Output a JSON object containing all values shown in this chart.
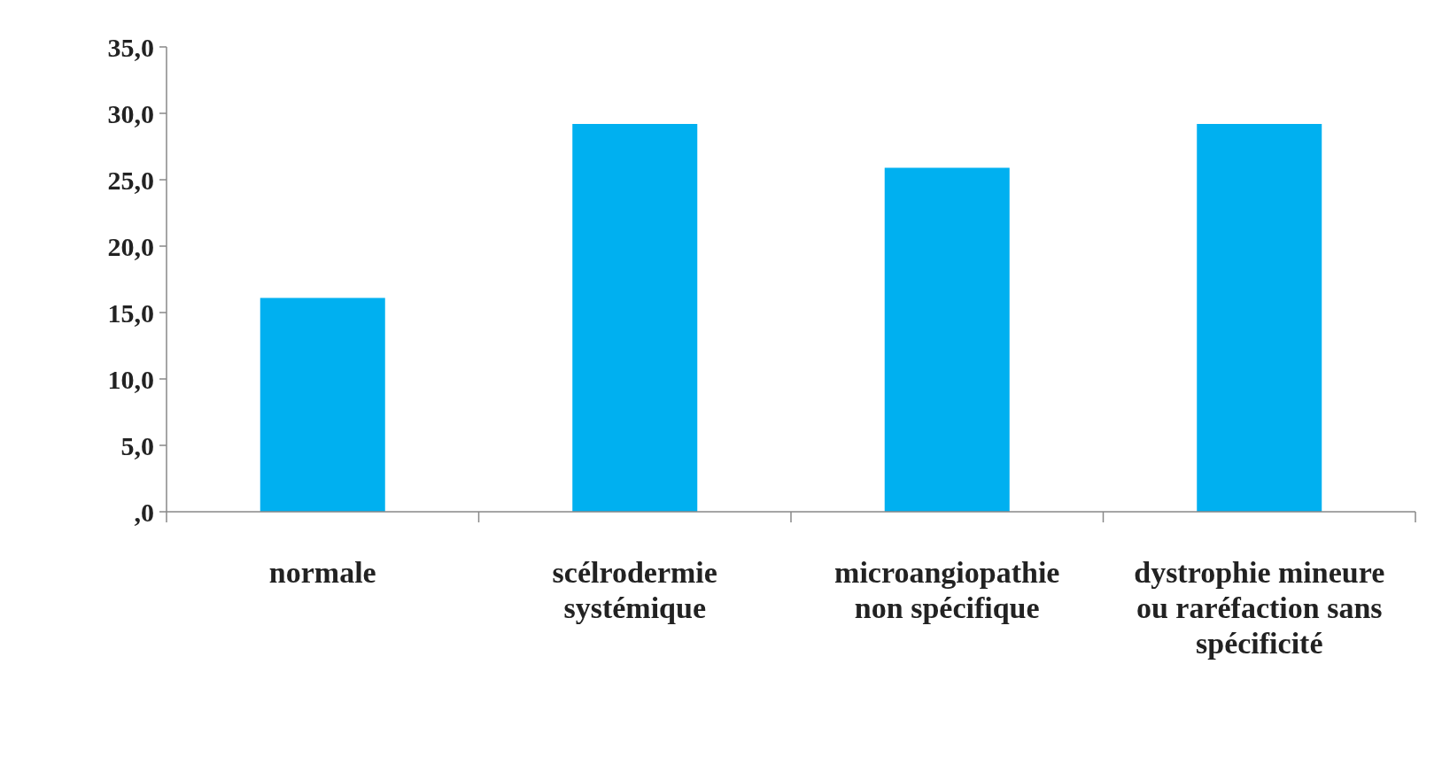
{
  "chart_data": {
    "type": "bar",
    "categories": [
      "normale",
      "scélrodermie systémique",
      "microangiopathie non spécifique",
      "dystrophie mineure ou raréfaction sans spécificité"
    ],
    "values": [
      16.1,
      29.2,
      25.9,
      29.2
    ],
    "color": "#00b0f0",
    "ylim": [
      0,
      35
    ],
    "yticks": [
      {
        "value": 0,
        "label": ",0"
      },
      {
        "value": 5,
        "label": "5,0"
      },
      {
        "value": 10,
        "label": "10,0"
      },
      {
        "value": 15,
        "label": "15,0"
      },
      {
        "value": 20,
        "label": "20,0"
      },
      {
        "value": 25,
        "label": "25,0"
      },
      {
        "value": 30,
        "label": "30,0"
      },
      {
        "value": 35,
        "label": "35,0"
      }
    ]
  }
}
